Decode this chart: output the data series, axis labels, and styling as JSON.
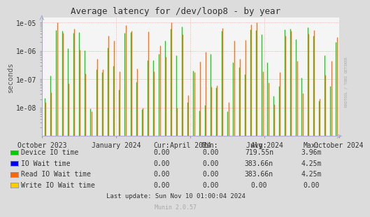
{
  "title": "Average latency for /dev/loop8 - by year",
  "ylabel": "seconds",
  "xlabel_ticks": [
    "October 2023",
    "January 2024",
    "April 2024",
    "July 2024",
    "October 2024"
  ],
  "bg_color": "#DCDCDC",
  "plot_bg_color": "#F5F5F5",
  "grid_color": "#FF9999",
  "series": [
    {
      "name": "Device IO time",
      "color": "#00CC00"
    },
    {
      "name": "IO Wait time",
      "color": "#0000FF"
    },
    {
      "name": "Read IO Wait time",
      "color": "#FF6600"
    },
    {
      "name": "Write IO Wait time",
      "color": "#FFCC00"
    }
  ],
  "legend_cur": [
    "0.00",
    "0.00",
    "0.00",
    "0.00"
  ],
  "legend_min": [
    "0.00",
    "0.00",
    "0.00",
    "0.00"
  ],
  "legend_avg": [
    "719.55n",
    "383.66n",
    "383.66n",
    "0.00"
  ],
  "legend_max": [
    "3.96m",
    "4.25m",
    "4.25m",
    "0.00"
  ],
  "footer": "Last update: Sun Nov 10 01:00:04 2024",
  "munin_version": "Munin 2.0.57",
  "rrdtool_label": "RRDTOOL / TOBI OETIKER"
}
